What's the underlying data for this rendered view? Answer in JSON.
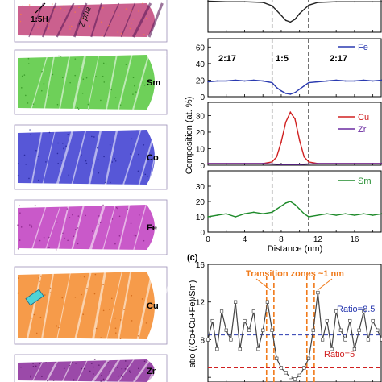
{
  "figure": {
    "panel_c_tag": "(c)",
    "maps": [
      {
        "label": "1:5H",
        "color": "#c2447a",
        "dots": "#ff7a3a"
      },
      {
        "label": "Sm",
        "color": "#55c83c",
        "dots": "#2a8a1a"
      },
      {
        "label": "Co",
        "color": "#3a3ad0",
        "dots": "#1a1a8a"
      },
      {
        "label": "Fe",
        "color": "#c03cc0",
        "dots": "#7a1a7a"
      },
      {
        "label": "Cu",
        "color": "#f58a2a",
        "dots": "#c85a0a"
      },
      {
        "label": "Zr",
        "color": "#8a2a9a",
        "dots": "#4a0a5a"
      }
    ],
    "map1_extra_label": "Z pha",
    "region_labels": [
      "2:17",
      "1:5",
      "2:17"
    ],
    "ylabel_composition": "Composition (at. %)",
    "xlabel": "Distance (nm)",
    "ratio_ylabel": "atio ((Co+Cu+Fe)/Sm)",
    "transition_label": "Transition zones ~1 nm",
    "ratio_high_label": "Ratio=8.5",
    "ratio_low_label": "Ratio=5"
  },
  "chart_data": [
    {
      "type": "line",
      "panel": "top-partial",
      "x_range": [
        0,
        19
      ],
      "series": [
        {
          "color": "#222222",
          "x": [
            0,
            2,
            4,
            6,
            7,
            8,
            8.5,
            9,
            9.5,
            10,
            11,
            12,
            14,
            16,
            18,
            19
          ],
          "values": [
            0.92,
            0.9,
            0.9,
            0.88,
            0.78,
            0.5,
            0.35,
            0.3,
            0.38,
            0.55,
            0.8,
            0.88,
            0.9,
            0.9,
            0.9,
            0.9
          ]
        }
      ],
      "dashed_x": [
        7,
        11
      ]
    },
    {
      "type": "line",
      "panel": "Fe",
      "legend": [
        "Fe"
      ],
      "x_range": [
        0,
        19
      ],
      "ylim": [
        0,
        70
      ],
      "yticks": [
        0,
        20,
        40,
        60
      ],
      "series": [
        {
          "name": "Fe",
          "color": "#2a3ab0",
          "x": [
            0,
            1,
            2,
            3,
            4,
            5,
            6,
            7,
            7.5,
            8,
            8.5,
            9,
            9.5,
            10,
            10.5,
            11,
            12,
            13,
            14,
            15,
            16,
            17,
            18,
            19
          ],
          "values": [
            18,
            19,
            19,
            20,
            19,
            20,
            19,
            17,
            11,
            7,
            4,
            3,
            5,
            9,
            13,
            17,
            18,
            19,
            20,
            19,
            19,
            20,
            19,
            20
          ]
        }
      ],
      "dashed_x": [
        7,
        11
      ]
    },
    {
      "type": "line",
      "panel": "Cu-Zr",
      "legend": [
        "Cu",
        "Zr"
      ],
      "x_range": [
        0,
        19
      ],
      "ylim": [
        0,
        38
      ],
      "yticks": [
        0,
        10,
        20,
        30
      ],
      "series": [
        {
          "name": "Cu",
          "color": "#d02020",
          "x": [
            0,
            2,
            4,
            6,
            7,
            7.5,
            8,
            8.5,
            9,
            9.5,
            10,
            10.5,
            11,
            12,
            14,
            16,
            18,
            19
          ],
          "values": [
            1,
            1,
            1,
            1,
            2,
            5,
            14,
            26,
            32,
            28,
            15,
            5,
            2,
            1,
            1,
            1,
            1,
            1
          ]
        },
        {
          "name": "Zr",
          "color": "#6a2aa0",
          "x": [
            0,
            2,
            4,
            6,
            8,
            10,
            12,
            14,
            16,
            18,
            19
          ],
          "values": [
            1,
            1,
            1,
            1,
            0.5,
            0.5,
            1,
            1,
            1,
            1,
            1
          ]
        }
      ],
      "dashed_x": [
        7,
        11
      ]
    },
    {
      "type": "line",
      "panel": "Sm",
      "legend": [
        "Sm"
      ],
      "x_range": [
        0,
        19
      ],
      "ylim": [
        0,
        40
      ],
      "yticks": [
        0,
        10,
        20,
        30
      ],
      "xticks": [
        0,
        2,
        4,
        6,
        8,
        10,
        12,
        14,
        16,
        18
      ],
      "xtick_labels": [
        "0",
        "",
        "4",
        "",
        "8",
        "",
        "12",
        "",
        "16",
        ""
      ],
      "series": [
        {
          "name": "Sm",
          "color": "#1e8a2a",
          "x": [
            0,
            1,
            2,
            3,
            4,
            5,
            6,
            7,
            7.5,
            8,
            8.5,
            9,
            9.5,
            10,
            10.5,
            11,
            12,
            13,
            14,
            15,
            16,
            17,
            18,
            19
          ],
          "values": [
            10,
            11,
            12,
            10,
            12,
            13,
            12,
            13,
            15,
            17,
            19,
            20,
            18,
            15,
            12,
            10,
            11,
            12,
            11,
            12,
            11,
            12,
            11,
            12
          ]
        }
      ],
      "dashed_x": [
        7,
        11
      ]
    },
    {
      "type": "line",
      "panel": "(c) ratio",
      "x_range": [
        0,
        19
      ],
      "ylim": [
        3.5,
        16
      ],
      "yticks": [
        4,
        8,
        12,
        16
      ],
      "ytick_labels": [
        "",
        "8",
        "12",
        "16"
      ],
      "series": [
        {
          "color": "#444444",
          "x": [
            0,
            0.5,
            1,
            1.5,
            2,
            2.5,
            3,
            3.5,
            4,
            4.5,
            5,
            5.5,
            6,
            6.5,
            7,
            7.5,
            8,
            8.5,
            9,
            9.5,
            10,
            10.5,
            11,
            11.5,
            12,
            12.5,
            13,
            13.5,
            14,
            14.5,
            15,
            15.5,
            16,
            16.5,
            17,
            17.5,
            18,
            18.5,
            19
          ],
          "values": [
            8,
            10,
            7,
            11,
            9,
            8,
            12,
            7,
            10,
            9,
            11,
            7,
            9,
            12,
            9,
            6,
            5,
            4.5,
            4,
            3.8,
            4.2,
            5,
            6,
            9,
            13,
            8,
            10,
            7,
            11,
            9,
            8,
            10,
            7,
            9,
            11,
            8,
            10,
            9,
            8
          ]
        }
      ],
      "hlines": [
        {
          "y": 8.5,
          "color": "#2a3ab0"
        },
        {
          "y": 5,
          "color": "#d02020"
        }
      ],
      "dashed_x_pairs": [
        [
          6.4,
          7.2
        ],
        [
          10.8,
          11.6
        ]
      ]
    }
  ]
}
